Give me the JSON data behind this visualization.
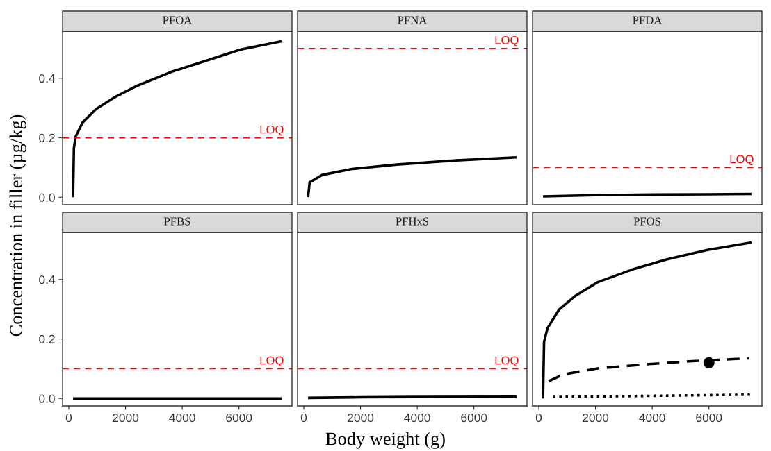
{
  "chart_data": [
    {
      "type": "line",
      "title": "PFOA",
      "ylabel": "Concentration in filler (µg/kg)",
      "xlim": [
        -220,
        7870
      ],
      "ylim": [
        -0.025,
        0.558
      ],
      "yticks": [
        {
          "value": 0,
          "label": "0.0"
        },
        {
          "value": 0.2,
          "label": "0.2"
        },
        {
          "value": 0.4,
          "label": "0.4"
        }
      ],
      "tick_labels": "y",
      "ref_lines": [
        {
          "axis": "y",
          "value": 0.2,
          "label": "LOQ",
          "color": "#ff0000",
          "line_style": "dashed"
        }
      ],
      "series": [
        {
          "color": "#000000",
          "line_style": "solid",
          "x": [
            150,
            180,
            242,
            484,
            968,
            1613,
            2419,
            3629,
            4839,
            6048,
            7500
          ],
          "values": [
            0.0,
            0.165,
            0.204,
            0.251,
            0.297,
            0.336,
            0.375,
            0.422,
            0.459,
            0.496,
            0.524
          ]
        }
      ]
    },
    {
      "type": "line",
      "title": "PFNA",
      "xlim": [
        -220,
        7870
      ],
      "ylim": [
        -0.025,
        0.558
      ],
      "tick_labels": false,
      "ref_lines": [
        {
          "axis": "y",
          "value": 0.5,
          "label": "LOQ",
          "color": "#ff0000",
          "line_style": "dashed"
        }
      ],
      "series": [
        {
          "color": "#000000",
          "line_style": "solid",
          "x": [
            150,
            206,
            648,
            1700,
            3280,
            5380,
            7500
          ],
          "values": [
            0.0,
            0.05,
            0.075,
            0.095,
            0.11,
            0.124,
            0.134
          ]
        }
      ]
    },
    {
      "type": "line",
      "title": "PFDA",
      "xlim": [
        -220,
        7870
      ],
      "ylim": [
        -0.025,
        0.558
      ],
      "tick_labels": false,
      "ref_lines": [
        {
          "axis": "y",
          "value": 0.1,
          "label": "LOQ",
          "color": "#ff0000",
          "line_style": "dashed"
        }
      ],
      "series": [
        {
          "color": "#000000",
          "line_style": "solid",
          "x": [
            150,
            2000,
            4000,
            7500
          ],
          "values": [
            0.003,
            0.007,
            0.009,
            0.011
          ]
        }
      ]
    },
    {
      "type": "line",
      "title": "PFBS",
      "xlim": [
        -220,
        7870
      ],
      "xticks": [
        0,
        2000,
        4000,
        6000
      ],
      "ylim": [
        -0.025,
        0.558
      ],
      "yticks": [
        {
          "value": 0,
          "label": "0.0"
        },
        {
          "value": 0.2,
          "label": "0.2"
        },
        {
          "value": 0.4,
          "label": "0.4"
        }
      ],
      "ref_lines": [
        {
          "axis": "y",
          "value": 0.1,
          "label": "LOQ",
          "color": "#ff0000",
          "line_style": "dashed"
        }
      ],
      "series": [
        {
          "color": "#000000",
          "line_style": "solid",
          "x": [
            150,
            7500
          ],
          "values": [
            0.0,
            0.0
          ]
        }
      ]
    },
    {
      "type": "line",
      "title": "PFHxS",
      "xlabel": "Body weight (g)",
      "xlim": [
        -220,
        7870
      ],
      "xticks": [
        0,
        2000,
        4000,
        6000
      ],
      "ylim": [
        -0.025,
        0.558
      ],
      "tick_labels": "x",
      "ref_lines": [
        {
          "axis": "y",
          "value": 0.1,
          "label": "LOQ",
          "color": "#ff0000",
          "line_style": "dashed"
        }
      ],
      "series": [
        {
          "color": "#000000",
          "line_style": "solid",
          "x": [
            150,
            2000,
            4000,
            7500
          ],
          "values": [
            0.002,
            0.004,
            0.005,
            0.006
          ]
        }
      ]
    },
    {
      "type": "line",
      "title": "PFOS",
      "xlim": [
        -220,
        7870
      ],
      "xticks": [
        0,
        2000,
        4000,
        6000
      ],
      "ylim": [
        -0.025,
        0.558
      ],
      "tick_labels": "x",
      "series": [
        {
          "color": "#000000",
          "line_style": "solid",
          "x": [
            150,
            186,
            306,
            710,
            1274,
            2080,
            3290,
            4500,
            5950,
            7500
          ],
          "values": [
            0.0,
            0.19,
            0.236,
            0.298,
            0.344,
            0.391,
            0.433,
            0.467,
            0.499,
            0.524
          ]
        },
        {
          "color": "#000000",
          "line_style": "dashed",
          "x": [
            346,
            871,
            2080,
            3694,
            5306,
            7404
          ],
          "values": [
            0.058,
            0.081,
            0.101,
            0.114,
            0.125,
            0.135
          ]
        },
        {
          "color": "#000000",
          "line_style": "dotted",
          "x": [
            500,
            4000,
            7500
          ],
          "values": [
            0.005,
            0.009,
            0.013
          ]
        },
        {
          "type": "scatter",
          "color": "#000000",
          "marker": "circle",
          "x": [
            6000
          ],
          "values": [
            0.12
          ]
        }
      ]
    }
  ]
}
